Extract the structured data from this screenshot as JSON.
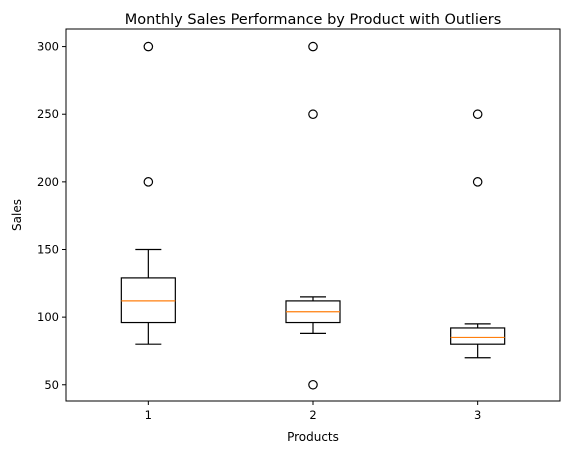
{
  "chart_data": {
    "type": "box",
    "title": "Monthly Sales Performance by Product with Outliers",
    "xlabel": "Products",
    "ylabel": "Sales",
    "categories": [
      "1",
      "2",
      "3"
    ],
    "ylim": [
      38,
      313
    ],
    "yticks": [
      50,
      100,
      150,
      200,
      250,
      300
    ],
    "grid": false,
    "boxes": [
      {
        "category": "1",
        "whisker_low": 80,
        "q1": 96,
        "median": 112,
        "q3": 129,
        "whisker_high": 150,
        "outliers": [
          200,
          300
        ]
      },
      {
        "category": "2",
        "whisker_low": 88,
        "q1": 96,
        "median": 104,
        "q3": 112,
        "whisker_high": 115,
        "outliers": [
          50,
          250,
          300
        ]
      },
      {
        "category": "3",
        "whisker_low": 70,
        "q1": 80,
        "median": 85,
        "q3": 92,
        "whisker_high": 95,
        "outliers": [
          200,
          250
        ]
      }
    ],
    "colors": {
      "box": "#000000",
      "median": "#ff7f0e",
      "outlier_edge": "#000000"
    }
  }
}
